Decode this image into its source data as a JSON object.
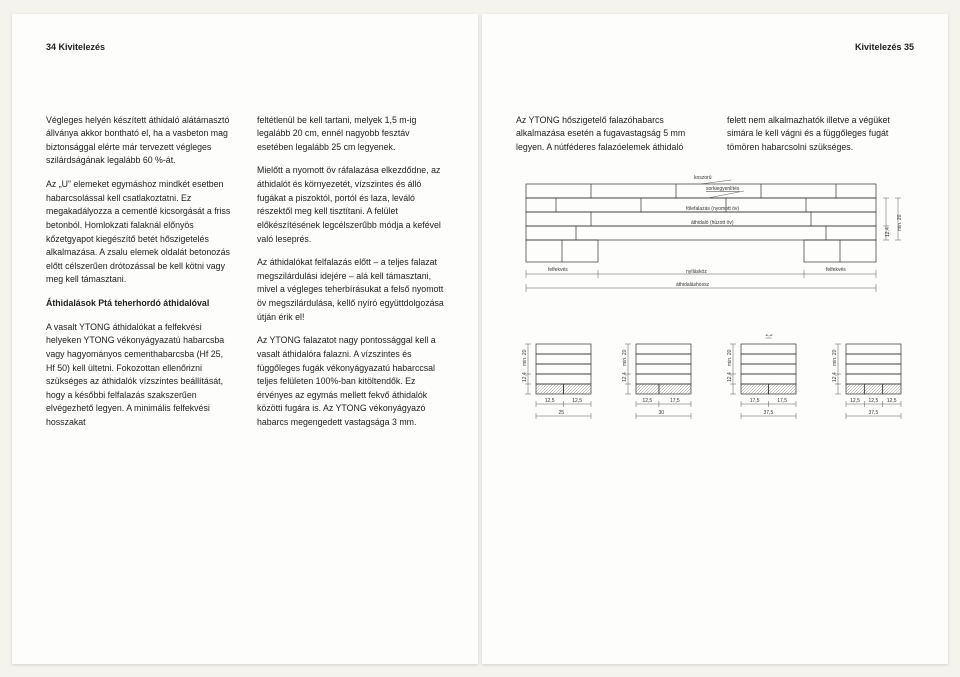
{
  "left": {
    "header": "34   Kivitelezés",
    "col1": {
      "p1": "Végleges helyén készített áthidaló alátámasztó állványa akkor bontható el, ha a vasbeton mag biztonsággal elérte már tervezett végleges szilárdságának legalább 60 %-át.",
      "p2": "Az „U” elemeket egymáshoz mindkét esetben habarcsolással kell csatlakoztatni. Ez megakadályozza a cementlé kicsorgását a friss betonból. Homlokzati falaknál előnyös kőzetgyapot kiegészítő betét hőszigetelés alkalmazása. A zsalu elemek oldalát betonozás előtt célszerűen drótozással be kell kötni vagy meg kell támasztani.",
      "subhead": "Áthidalások Ptá teherhordó áthidalóval",
      "p3": "A vasalt YTONG áthidalókat a felfekvési helyeken YTONG vékonyágyazatú habarcsba vagy hagyományos cementhabarcsba (Hf 25, Hf 50) kell ültetni. Fokozottan ellenőrizni szükséges az áthidalók vízszintes beállítását, hogy a későbbi felfalazás szakszerűen elvégezhető legyen. A minimális felfekvési hosszakat"
    },
    "col2": {
      "p1": "feltétlenül be kell tartani, melyek 1,5 m-ig legalább 20 cm, ennél nagyobb fesztáv esetében legalább 25 cm legyenek.",
      "p2": "Mielőtt a nyomott öv ráfalazása elkezdődne, az áthidalót és környezetét, vízszintes és álló fugákat a piszoktól, portól és laza, leváló részektől meg kell tisztítani. A felület előkészítésének legcélszerűbb módja a kefével való leseprés.",
      "p3": "Az áthidalókat felfalazás előtt – a teljes falazat megszilárdulási idejére – alá kell támasztani, mivel a végleges teherbírásukat a felső nyomott öv megszilárdulása, kellő nyíró együttdolgozása útján érik el!",
      "p4": "Az YTONG falazatot nagy pontossággal kell a vasalt áthidalóra falazni. A vízszintes és függőleges fugák vékonyágyazatú habarccsal teljes felületen 100%-ban kitöltendők. Ez érvényes az egymás mellett fekvő áthidalók közötti fugára is. Az YTONG vékonyágyazó habarcs megengedett vastagsága 3 mm."
    }
  },
  "right": {
    "header": "Kivitelezés   35",
    "col1": {
      "p1": "Az YTONG hőszigetelő falazóhabarcs alkalmazása esetén a fugavastagság 5 mm legyen. A nútféderes falazóelemek áthidaló"
    },
    "col2": {
      "p1": "felett nem alkalmazhatók illetve a végüket simára le kell vágni és a függőleges fugát tömören habarcsolni szükséges."
    },
    "diagram_main": {
      "labels": {
        "koszoru": "koszorú",
        "sork": "sorkiegyenlítés",
        "folefalazas": "fölefalazás (nyomott öv)",
        "athidalo": "áthidaló (húzott öv)",
        "felfekves": "felfekvés",
        "nyilaskoz": "nyílásköz",
        "athidalashossz": "áthidaláshossz",
        "dim_v1": "12,4",
        "dim_v2": "min. 20"
      },
      "colors": {
        "line": "#333333",
        "bg": "#ffffff"
      }
    },
    "sections": [
      {
        "dims": [
          "12,5",
          "12,5"
        ],
        "total": "25",
        "v": [
          "12,4",
          "min. 20"
        ]
      },
      {
        "dims": [
          "12,5",
          "17,5"
        ],
        "total": "30",
        "v": [
          "12,4",
          "min. 20"
        ]
      },
      {
        "dims": [
          "17,5",
          "17,5"
        ],
        "total": "37,5",
        "extra": "2,5",
        "v": [
          "12,4",
          "min. 20"
        ]
      },
      {
        "dims": [
          "12,5",
          "12,5",
          "12,5"
        ],
        "total": "37,5",
        "v": [
          "12,4",
          "min. 20"
        ]
      }
    ]
  }
}
